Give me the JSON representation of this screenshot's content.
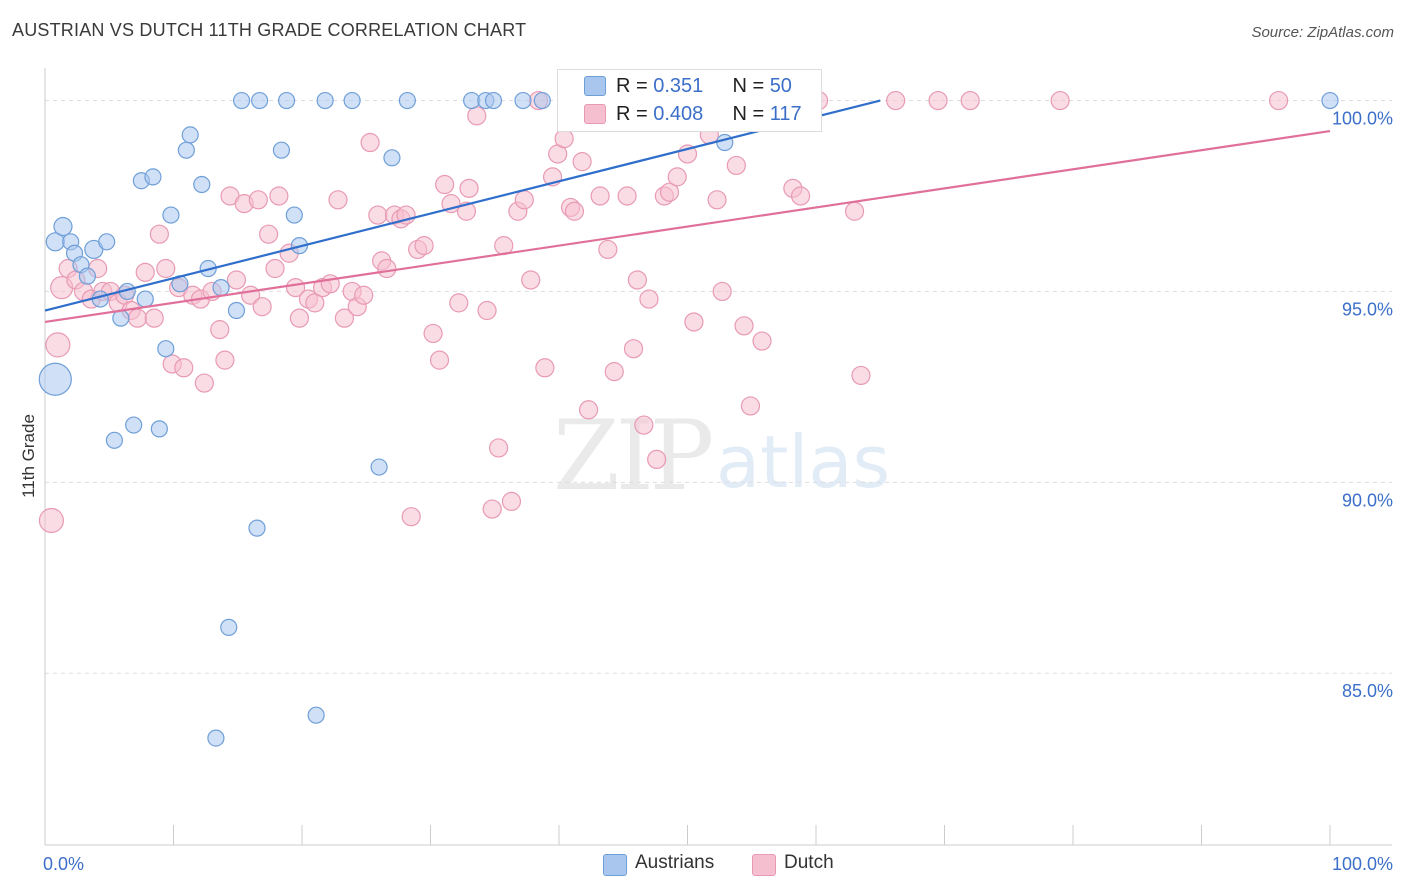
{
  "header": {
    "title": "AUSTRIAN VS DUTCH 11TH GRADE CORRELATION CHART",
    "source": "Source: ZipAtlas.com"
  },
  "watermark": {
    "zip": "ZIP",
    "atlas": "atlas"
  },
  "legend": {
    "austrians": {
      "r_label": "R = ",
      "r_value": "0.351",
      "n_label": "N = ",
      "n_value": "50"
    },
    "dutch": {
      "r_label": "R = ",
      "r_value": "0.408",
      "n_label": "N = ",
      "n_value": "117"
    }
  },
  "bottom_legend": {
    "austrians": "Austrians",
    "dutch": "Dutch"
  },
  "colors": {
    "austrians_fill": "#a9c7ee",
    "austrians_stroke": "#6f9fd8",
    "austrians_line": "#2f6fcb",
    "dutch_fill": "#f6bfd0",
    "dutch_stroke": "#e89ab4",
    "dutch_line": "#e0709a",
    "tick_label": "#3c6fc9"
  },
  "chart_data": {
    "type": "scatter",
    "title": "AUSTRIAN VS DUTCH 11TH GRADE CORRELATION CHART",
    "xlabel": "",
    "ylabel": "11th Grade",
    "xlim": [
      0,
      100
    ],
    "ylim": [
      80.5,
      100.8
    ],
    "x_tick_labels": [
      "0.0%",
      "100.0%"
    ],
    "y_ticks": [
      85,
      90,
      95,
      100
    ],
    "y_tick_labels": [
      "85.0%",
      "90.0%",
      "95.0%",
      "100.0%"
    ],
    "grid": true,
    "series": [
      {
        "name": "Austrians",
        "trend": {
          "x0": 0,
          "y0": 94.5,
          "x1": 65,
          "y1": 100.0
        },
        "points": [
          [
            0.8,
            92.7,
            16
          ],
          [
            0.8,
            96.3,
            9
          ],
          [
            1.4,
            96.7,
            9
          ],
          [
            2.0,
            96.3,
            8
          ],
          [
            2.3,
            96.0,
            8
          ],
          [
            2.8,
            95.7,
            8
          ],
          [
            3.3,
            95.4,
            8
          ],
          [
            3.8,
            96.1,
            9
          ],
          [
            4.3,
            94.8,
            8
          ],
          [
            4.8,
            96.3,
            8
          ],
          [
            5.4,
            91.1,
            8
          ],
          [
            5.9,
            94.3,
            8
          ],
          [
            6.4,
            95.0,
            8
          ],
          [
            6.9,
            91.5,
            8
          ],
          [
            7.5,
            97.9,
            8
          ],
          [
            7.8,
            94.8,
            8
          ],
          [
            8.4,
            98.0,
            8
          ],
          [
            8.9,
            91.4,
            8
          ],
          [
            9.4,
            93.5,
            8
          ],
          [
            9.8,
            97.0,
            8
          ],
          [
            10.5,
            95.2,
            8
          ],
          [
            11.0,
            98.7,
            8
          ],
          [
            11.3,
            99.1,
            8
          ],
          [
            12.2,
            97.8,
            8
          ],
          [
            12.7,
            95.6,
            8
          ],
          [
            13.3,
            83.3,
            8
          ],
          [
            13.7,
            95.1,
            8
          ],
          [
            14.3,
            86.2,
            8
          ],
          [
            14.9,
            94.5,
            8
          ],
          [
            15.3,
            100.0,
            8
          ],
          [
            16.7,
            100.0,
            8
          ],
          [
            16.5,
            88.8,
            8
          ],
          [
            18.4,
            98.7,
            8
          ],
          [
            18.8,
            100.0,
            8
          ],
          [
            19.4,
            97.0,
            8
          ],
          [
            19.8,
            96.2,
            8
          ],
          [
            21.1,
            83.9,
            8
          ],
          [
            21.8,
            100.0,
            8
          ],
          [
            23.9,
            100.0,
            8
          ],
          [
            26.0,
            90.4,
            8
          ],
          [
            27.0,
            98.5,
            8
          ],
          [
            28.2,
            100.0,
            8
          ],
          [
            33.2,
            100.0,
            8
          ],
          [
            34.3,
            100.0,
            8
          ],
          [
            34.9,
            100.0,
            8
          ],
          [
            37.2,
            100.0,
            8
          ],
          [
            38.7,
            100.0,
            8
          ],
          [
            41.5,
            100.0,
            8
          ],
          [
            52.9,
            98.9,
            8
          ],
          [
            100.0,
            100.0,
            8
          ]
        ]
      },
      {
        "name": "Dutch",
        "trend": {
          "x0": 0,
          "y0": 94.2,
          "x1": 100,
          "y1": 99.2
        },
        "points": [
          [
            0.5,
            89.0,
            12
          ],
          [
            1.0,
            93.6,
            12
          ],
          [
            1.3,
            95.1,
            11
          ],
          [
            1.8,
            95.6,
            9
          ],
          [
            2.4,
            95.3,
            9
          ],
          [
            3.0,
            95.0,
            9
          ],
          [
            3.6,
            94.8,
            9
          ],
          [
            4.1,
            95.6,
            9
          ],
          [
            4.5,
            95.0,
            9
          ],
          [
            5.1,
            95.0,
            9
          ],
          [
            5.7,
            94.7,
            9
          ],
          [
            6.2,
            94.9,
            9
          ],
          [
            6.7,
            94.5,
            9
          ],
          [
            7.2,
            94.3,
            9
          ],
          [
            7.8,
            95.5,
            9
          ],
          [
            8.5,
            94.3,
            9
          ],
          [
            8.9,
            96.5,
            9
          ],
          [
            9.4,
            95.6,
            9
          ],
          [
            9.9,
            93.1,
            9
          ],
          [
            10.4,
            95.1,
            9
          ],
          [
            10.8,
            93.0,
            9
          ],
          [
            11.5,
            94.9,
            9
          ],
          [
            12.1,
            94.8,
            9
          ],
          [
            12.4,
            92.6,
            9
          ],
          [
            13.0,
            95.0,
            9
          ],
          [
            13.6,
            94.0,
            9
          ],
          [
            14.0,
            93.2,
            9
          ],
          [
            14.4,
            97.5,
            9
          ],
          [
            14.9,
            95.3,
            9
          ],
          [
            15.5,
            97.3,
            9
          ],
          [
            16.0,
            94.9,
            9
          ],
          [
            16.6,
            97.4,
            9
          ],
          [
            16.9,
            94.6,
            9
          ],
          [
            17.4,
            96.5,
            9
          ],
          [
            17.9,
            95.6,
            9
          ],
          [
            18.2,
            97.5,
            9
          ],
          [
            19.0,
            96.0,
            9
          ],
          [
            19.5,
            95.1,
            9
          ],
          [
            19.8,
            94.3,
            9
          ],
          [
            20.5,
            94.8,
            9
          ],
          [
            21.0,
            94.7,
            9
          ],
          [
            21.6,
            95.1,
            9
          ],
          [
            22.2,
            95.2,
            9
          ],
          [
            22.8,
            97.4,
            9
          ],
          [
            23.3,
            94.3,
            9
          ],
          [
            23.9,
            95.0,
            9
          ],
          [
            24.3,
            94.6,
            9
          ],
          [
            24.8,
            94.9,
            9
          ],
          [
            25.3,
            98.9,
            9
          ],
          [
            25.9,
            97.0,
            9
          ],
          [
            26.2,
            95.8,
            9
          ],
          [
            26.6,
            95.6,
            9
          ],
          [
            27.2,
            97.0,
            9
          ],
          [
            27.7,
            96.9,
            9
          ],
          [
            28.1,
            97.0,
            9
          ],
          [
            28.5,
            89.1,
            9
          ],
          [
            29.0,
            96.1,
            9
          ],
          [
            29.5,
            96.2,
            9
          ],
          [
            30.2,
            93.9,
            9
          ],
          [
            30.7,
            93.2,
            9
          ],
          [
            31.1,
            97.8,
            9
          ],
          [
            31.6,
            97.3,
            9
          ],
          [
            32.2,
            94.7,
            9
          ],
          [
            32.8,
            97.1,
            9
          ],
          [
            33.0,
            97.7,
            9
          ],
          [
            33.6,
            99.6,
            9
          ],
          [
            34.4,
            94.5,
            9
          ],
          [
            34.8,
            89.3,
            9
          ],
          [
            35.3,
            90.9,
            9
          ],
          [
            35.7,
            96.2,
            9
          ],
          [
            36.3,
            89.5,
            9
          ],
          [
            36.8,
            97.1,
            9
          ],
          [
            37.3,
            97.4,
            9
          ],
          [
            37.8,
            95.3,
            9
          ],
          [
            38.4,
            100.0,
            9
          ],
          [
            38.9,
            93.0,
            9
          ],
          [
            39.5,
            98.0,
            9
          ],
          [
            39.9,
            98.6,
            9
          ],
          [
            40.4,
            99.0,
            9
          ],
          [
            40.9,
            97.2,
            9
          ],
          [
            41.2,
            97.1,
            9
          ],
          [
            41.8,
            98.4,
            9
          ],
          [
            42.3,
            91.9,
            9
          ],
          [
            42.7,
            100.0,
            9
          ],
          [
            43.2,
            97.5,
            9
          ],
          [
            43.8,
            96.1,
            9
          ],
          [
            44.3,
            92.9,
            9
          ],
          [
            44.8,
            100.0,
            9
          ],
          [
            45.3,
            97.5,
            9
          ],
          [
            45.8,
            93.5,
            9
          ],
          [
            46.1,
            95.3,
            9
          ],
          [
            46.6,
            91.5,
            9
          ],
          [
            47.0,
            94.8,
            9
          ],
          [
            47.6,
            90.6,
            9
          ],
          [
            48.2,
            97.5,
            9
          ],
          [
            48.6,
            97.6,
            9
          ],
          [
            49.2,
            98.0,
            9
          ],
          [
            50.0,
            98.6,
            9
          ],
          [
            50.5,
            94.2,
            9
          ],
          [
            51.7,
            99.1,
            9
          ],
          [
            52.3,
            97.4,
            9
          ],
          [
            52.7,
            95.0,
            9
          ],
          [
            53.3,
            100.0,
            9
          ],
          [
            53.8,
            98.3,
            9
          ],
          [
            54.4,
            94.1,
            9
          ],
          [
            54.9,
            92.0,
            9
          ],
          [
            55.8,
            93.7,
            9
          ],
          [
            58.2,
            97.7,
            9
          ],
          [
            58.8,
            97.5,
            9
          ],
          [
            60.2,
            100.0,
            9
          ],
          [
            63.0,
            97.1,
            9
          ],
          [
            63.5,
            92.8,
            9
          ],
          [
            66.2,
            100.0,
            9
          ],
          [
            69.5,
            100.0,
            9
          ],
          [
            72.0,
            100.0,
            9
          ],
          [
            79.0,
            100.0,
            9
          ],
          [
            96.0,
            100.0,
            9
          ]
        ]
      }
    ]
  }
}
